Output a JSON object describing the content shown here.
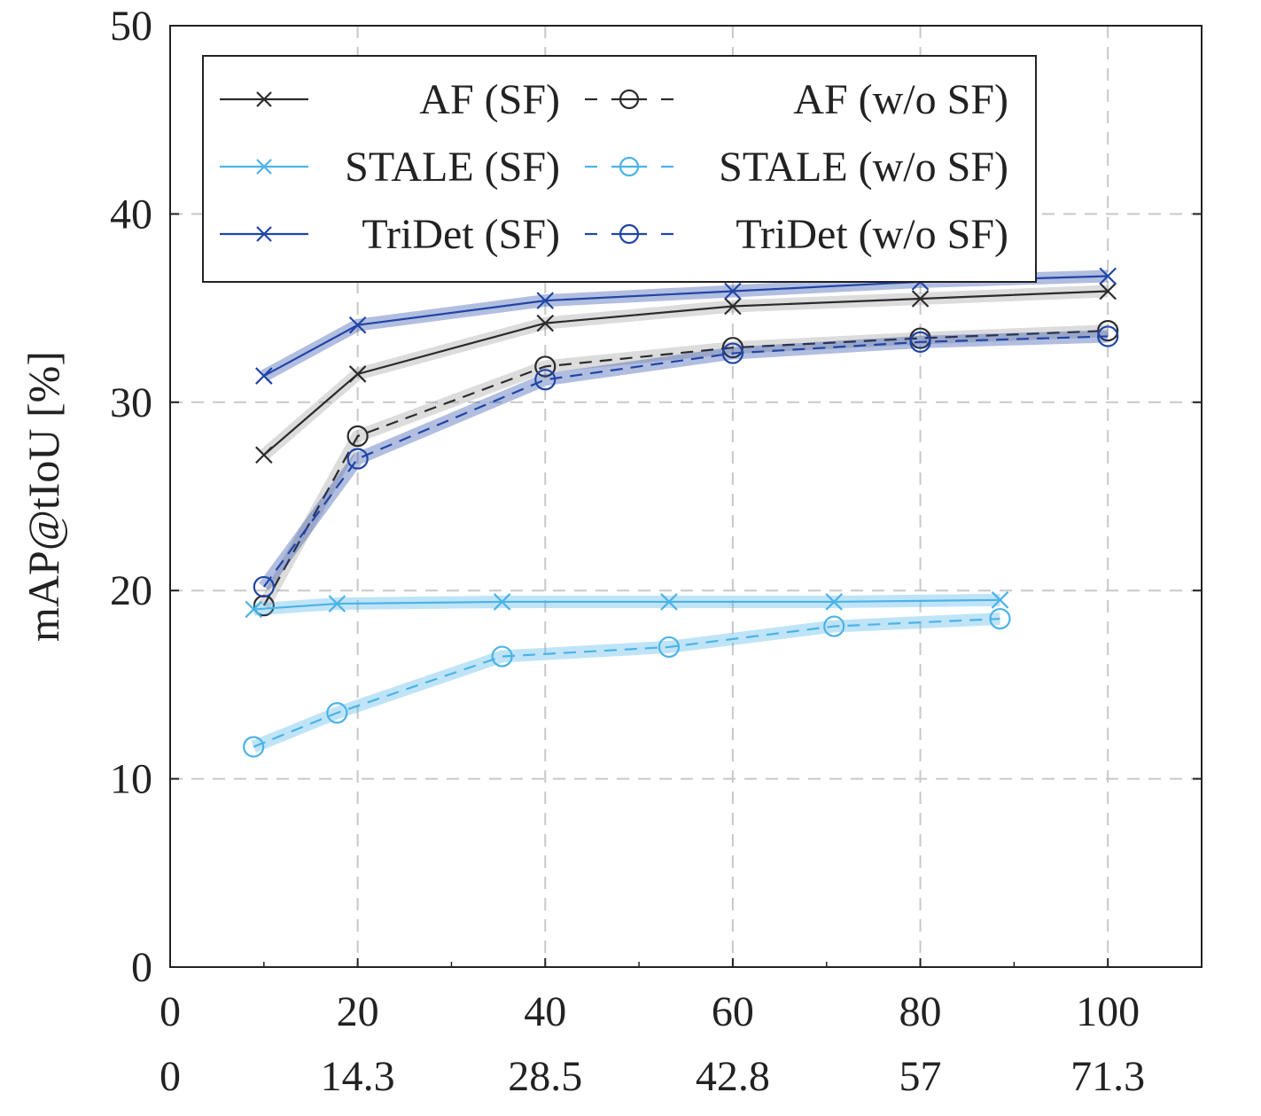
{
  "chart_data": {
    "type": "line",
    "title": "",
    "xlabel": "",
    "ylabel": "mAP@tIoU [%]",
    "xlim": [
      0,
      110
    ],
    "ylim": [
      0,
      50
    ],
    "grid": true,
    "legend_position": "top",
    "x_ticks": [
      0,
      20,
      40,
      60,
      80,
      100
    ],
    "x_ticks_secondary": [
      "0",
      "14.3",
      "28.5",
      "42.8",
      "57",
      "71.3"
    ],
    "y_ticks": [
      0,
      10,
      20,
      30,
      40,
      50
    ],
    "series": [
      {
        "name": "AF (SF)",
        "color": "#2b2b2b",
        "dashed": false,
        "marker": "x",
        "x": [
          10,
          20,
          40,
          60,
          80,
          100
        ],
        "y": [
          27.2,
          31.5,
          34.2,
          35.1,
          35.5,
          35.9
        ]
      },
      {
        "name": "AF (w/o SF)",
        "color": "#2b2b2b",
        "dashed": true,
        "marker": "o",
        "x": [
          10,
          20,
          40,
          60,
          80,
          100
        ],
        "y": [
          19.2,
          28.2,
          31.9,
          32.9,
          33.4,
          33.8
        ]
      },
      {
        "name": "STALE (SF)",
        "color": "#4ab3e8",
        "dashed": false,
        "marker": "x",
        "x": [
          8.9,
          17.8,
          35.4,
          53.2,
          70.8,
          88.5
        ],
        "y": [
          19.0,
          19.3,
          19.4,
          19.4,
          19.4,
          19.5
        ]
      },
      {
        "name": "STALE (w/o SF)",
        "color": "#4ab3e8",
        "dashed": true,
        "marker": "o",
        "x": [
          8.9,
          17.8,
          35.4,
          53.2,
          70.8,
          88.5
        ],
        "y": [
          11.7,
          13.5,
          16.5,
          17.0,
          18.1,
          18.5
        ]
      },
      {
        "name": "TriDet (SF)",
        "color": "#2145a6",
        "dashed": false,
        "marker": "x",
        "x": [
          10,
          20,
          40,
          60,
          80,
          100
        ],
        "y": [
          31.4,
          34.1,
          35.4,
          35.9,
          36.4,
          36.7
        ]
      },
      {
        "name": "TriDet (w/o SF)",
        "color": "#2145a6",
        "dashed": true,
        "marker": "o",
        "x": [
          10,
          20,
          40,
          60,
          80,
          100
        ],
        "y": [
          20.2,
          27.0,
          31.2,
          32.6,
          33.2,
          33.5
        ]
      }
    ]
  }
}
